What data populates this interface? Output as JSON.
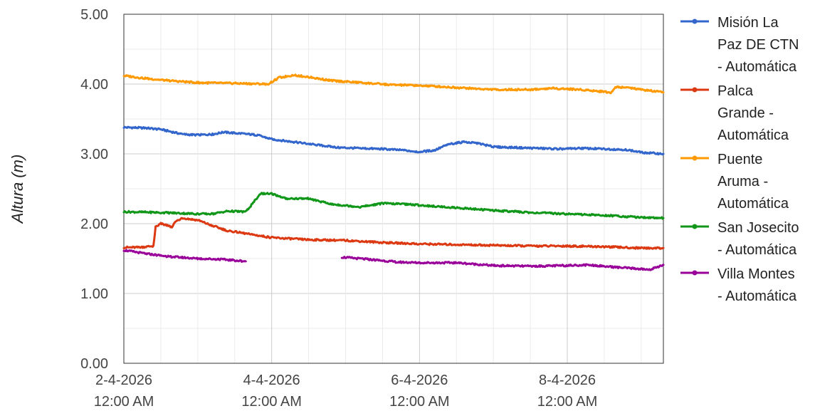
{
  "chart_data": {
    "type": "line",
    "title": "",
    "ylabel": "Altura (m)",
    "xlabel": "",
    "ylim": [
      0,
      5
    ],
    "yticks": [
      "0.00",
      "1.00",
      "2.00",
      "3.00",
      "4.00",
      "5.00"
    ],
    "xlim": [
      0,
      7.3
    ],
    "xticks": [
      {
        "line1": "2-4-2026",
        "line2": "12:00 AM",
        "day": 0
      },
      {
        "line1": "4-4-2026",
        "line2": "12:00 AM",
        "day": 2
      },
      {
        "line1": "6-4-2026",
        "line2": "12:00 AM",
        "day": 4
      },
      {
        "line1": "8-4-2026",
        "line2": "12:00 AM",
        "day": 6
      }
    ],
    "x_units": "days after 2-4-2026 12:00 AM",
    "grid": true,
    "legend_position": "right",
    "series": [
      {
        "name": "Misión La Paz DE CTN - Automática",
        "legend_lines": [
          "Misión La",
          "Paz DE CTN",
          "- Automática"
        ],
        "color": "#3366cc",
        "points": [
          [
            0,
            3.38
          ],
          [
            0.3,
            3.37
          ],
          [
            0.5,
            3.35
          ],
          [
            0.8,
            3.28
          ],
          [
            1.0,
            3.27
          ],
          [
            1.2,
            3.28
          ],
          [
            1.35,
            3.31
          ],
          [
            1.6,
            3.29
          ],
          [
            1.8,
            3.27
          ],
          [
            2.0,
            3.21
          ],
          [
            2.3,
            3.17
          ],
          [
            2.6,
            3.13
          ],
          [
            2.9,
            3.09
          ],
          [
            3.2,
            3.08
          ],
          [
            3.5,
            3.07
          ],
          [
            3.8,
            3.05
          ],
          [
            4.0,
            3.03
          ],
          [
            4.2,
            3.05
          ],
          [
            4.4,
            3.14
          ],
          [
            4.6,
            3.17
          ],
          [
            4.8,
            3.15
          ],
          [
            5.0,
            3.1
          ],
          [
            5.3,
            3.09
          ],
          [
            5.6,
            3.08
          ],
          [
            5.9,
            3.07
          ],
          [
            6.2,
            3.08
          ],
          [
            6.5,
            3.07
          ],
          [
            6.8,
            3.06
          ],
          [
            7.0,
            3.02
          ],
          [
            7.3,
            3.0
          ]
        ]
      },
      {
        "name": "Palca Grande - Automática",
        "legend_lines": [
          "Palca",
          "Grande -",
          "Automática"
        ],
        "color": "#dc3912",
        "points": [
          [
            0,
            1.66
          ],
          [
            0.2,
            1.66
          ],
          [
            0.4,
            1.68
          ],
          [
            0.43,
            1.95
          ],
          [
            0.5,
            2.0
          ],
          [
            0.6,
            1.97
          ],
          [
            0.65,
            1.95
          ],
          [
            0.72,
            2.05
          ],
          [
            0.8,
            2.08
          ],
          [
            1.0,
            2.05
          ],
          [
            1.2,
            1.97
          ],
          [
            1.4,
            1.9
          ],
          [
            1.7,
            1.85
          ],
          [
            2.0,
            1.8
          ],
          [
            2.5,
            1.77
          ],
          [
            3.0,
            1.76
          ],
          [
            3.5,
            1.73
          ],
          [
            4.0,
            1.71
          ],
          [
            4.5,
            1.7
          ],
          [
            5.0,
            1.69
          ],
          [
            5.5,
            1.68
          ],
          [
            6.0,
            1.68
          ],
          [
            6.5,
            1.67
          ],
          [
            7.0,
            1.65
          ],
          [
            7.3,
            1.65
          ]
        ]
      },
      {
        "name": "Puente Aruma - Automática",
        "legend_lines": [
          "Puente",
          "Aruma -",
          "Automática"
        ],
        "color": "#ff9900",
        "points": [
          [
            0,
            4.12
          ],
          [
            0.3,
            4.08
          ],
          [
            0.6,
            4.05
          ],
          [
            1.0,
            4.02
          ],
          [
            1.5,
            4.01
          ],
          [
            1.95,
            4.0
          ],
          [
            2.1,
            4.09
          ],
          [
            2.3,
            4.13
          ],
          [
            2.5,
            4.1
          ],
          [
            2.8,
            4.05
          ],
          [
            3.2,
            4.02
          ],
          [
            3.6,
            3.99
          ],
          [
            4.0,
            3.98
          ],
          [
            4.5,
            3.95
          ],
          [
            5.0,
            3.92
          ],
          [
            5.5,
            3.92
          ],
          [
            5.8,
            3.94
          ],
          [
            6.2,
            3.92
          ],
          [
            6.5,
            3.89
          ],
          [
            6.6,
            3.88
          ],
          [
            6.65,
            3.96
          ],
          [
            6.8,
            3.95
          ],
          [
            7.0,
            3.92
          ],
          [
            7.3,
            3.88
          ]
        ]
      },
      {
        "name": "San Josecito - Automática",
        "legend_lines": [
          "San Josecito",
          "- Automática"
        ],
        "color": "#109618",
        "points": [
          [
            0,
            2.17
          ],
          [
            0.5,
            2.16
          ],
          [
            1.0,
            2.14
          ],
          [
            1.2,
            2.14
          ],
          [
            1.4,
            2.18
          ],
          [
            1.65,
            2.17
          ],
          [
            1.75,
            2.3
          ],
          [
            1.85,
            2.43
          ],
          [
            2.0,
            2.43
          ],
          [
            2.2,
            2.36
          ],
          [
            2.5,
            2.36
          ],
          [
            2.8,
            2.28
          ],
          [
            3.2,
            2.24
          ],
          [
            3.5,
            2.29
          ],
          [
            3.8,
            2.28
          ],
          [
            4.2,
            2.25
          ],
          [
            4.6,
            2.22
          ],
          [
            5.0,
            2.19
          ],
          [
            5.5,
            2.16
          ],
          [
            6.0,
            2.14
          ],
          [
            6.5,
            2.12
          ],
          [
            7.0,
            2.09
          ],
          [
            7.3,
            2.08
          ]
        ]
      },
      {
        "name": "Villa Montes - Automática",
        "legend_lines": [
          "Villa Montes",
          "- Automática"
        ],
        "color": "#990099",
        "points": [
          [
            0,
            1.62
          ],
          [
            0.3,
            1.57
          ],
          [
            0.6,
            1.53
          ],
          [
            1.0,
            1.5
          ],
          [
            1.3,
            1.49
          ],
          [
            1.55,
            1.47
          ],
          [
            1.65,
            1.46
          ],
          null,
          [
            2.95,
            1.52
          ],
          [
            3.3,
            1.49
          ],
          [
            3.7,
            1.45
          ],
          [
            4.0,
            1.44
          ],
          [
            4.5,
            1.44
          ],
          [
            5.0,
            1.4
          ],
          [
            5.5,
            1.39
          ],
          [
            6.0,
            1.4
          ],
          [
            6.3,
            1.41
          ],
          [
            6.6,
            1.38
          ],
          [
            7.0,
            1.35
          ],
          [
            7.1,
            1.34
          ],
          [
            7.2,
            1.37
          ],
          [
            7.3,
            1.41
          ]
        ]
      }
    ]
  }
}
